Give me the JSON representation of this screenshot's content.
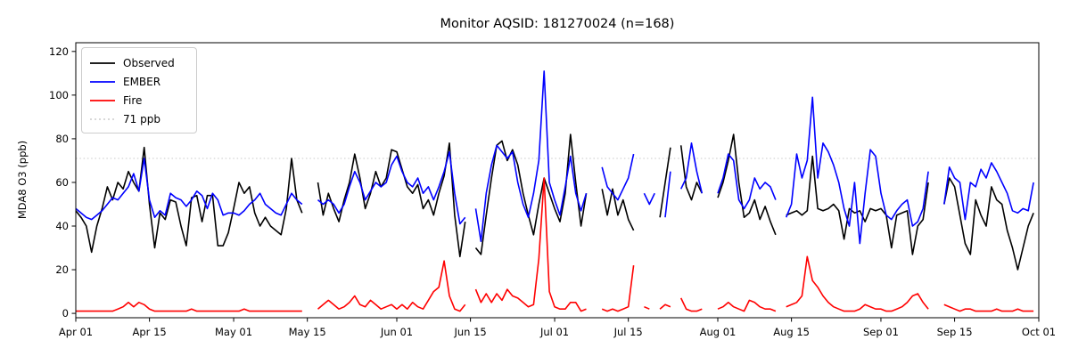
{
  "chart_data": {
    "type": "line",
    "title": "Monitor AQSID: 181270024 (n=168)",
    "xlabel": "",
    "ylabel": "MDA8 O3 (ppb)",
    "n_observations": 168,
    "total_days": 183,
    "x_range": [
      "Apr 01",
      "Oct 01"
    ],
    "ylim": [
      -2,
      124
    ],
    "yticks": [
      0,
      20,
      40,
      60,
      80,
      100,
      120
    ],
    "xticks": [
      {
        "label": "Apr 01",
        "day": 0
      },
      {
        "label": "Apr 15",
        "day": 14
      },
      {
        "label": "May 01",
        "day": 30
      },
      {
        "label": "May 15",
        "day": 44
      },
      {
        "label": "Jun 01",
        "day": 61
      },
      {
        "label": "Jun 15",
        "day": 75
      },
      {
        "label": "Jul 01",
        "day": 91
      },
      {
        "label": "Jul 15",
        "day": 105
      },
      {
        "label": "Aug 01",
        "day": 122
      },
      {
        "label": "Aug 15",
        "day": 136
      },
      {
        "label": "Sep 01",
        "day": 153
      },
      {
        "label": "Sep 15",
        "day": 167
      },
      {
        "label": "Oct 01",
        "day": 183
      }
    ],
    "threshold": {
      "value": 71,
      "label": "71 ppb",
      "color": "#d3d3d3",
      "style": "dotted"
    },
    "legend": [
      {
        "label": "Observed",
        "color": "#000000",
        "style": "solid"
      },
      {
        "label": "EMBER",
        "color": "#0000ff",
        "style": "solid"
      },
      {
        "label": "Fire",
        "color": "#ff0000",
        "style": "solid"
      },
      {
        "label": "71 ppb",
        "color": "#d3d3d3",
        "style": "dotted"
      }
    ],
    "series": [
      {
        "name": "Observed",
        "color": "#000000",
        "values": [
          47,
          44,
          40,
          28,
          40,
          48,
          58,
          52,
          60,
          57,
          65,
          60,
          56,
          76,
          50,
          30,
          46,
          43,
          52,
          51,
          40,
          31,
          53,
          54,
          42,
          54,
          54,
          31,
          31,
          37,
          48,
          60,
          55,
          58,
          46,
          40,
          44,
          40,
          38,
          36,
          48,
          71,
          52,
          46,
          null,
          null,
          60,
          45,
          55,
          48,
          42,
          52,
          60,
          73,
          62,
          48,
          55,
          65,
          58,
          62,
          75,
          74,
          66,
          58,
          55,
          59,
          48,
          52,
          45,
          55,
          63,
          78,
          45,
          26,
          42,
          null,
          30,
          27,
          45,
          62,
          77,
          79,
          70,
          75,
          68,
          55,
          45,
          36,
          50,
          62,
          55,
          48,
          42,
          55,
          82,
          60,
          40,
          55,
          null,
          null,
          57,
          45,
          57,
          45,
          52,
          43,
          38,
          null,
          null,
          null,
          null,
          44,
          60,
          76,
          null,
          77,
          58,
          52,
          60,
          55,
          null,
          null,
          53,
          60,
          70,
          82,
          60,
          44,
          46,
          52,
          43,
          49,
          42,
          36,
          null,
          45,
          46,
          47,
          45,
          47,
          72,
          48,
          47,
          48,
          50,
          47,
          34,
          48,
          46,
          47,
          42,
          48,
          47,
          48,
          45,
          30,
          45,
          46,
          47,
          27,
          40,
          43,
          60,
          null,
          null,
          50,
          62,
          58,
          45,
          32,
          27,
          52,
          45,
          40,
          58,
          52,
          50,
          38,
          30,
          20,
          30,
          40,
          46
        ]
      },
      {
        "name": "EMBER",
        "color": "#0000ff",
        "values": [
          48,
          46,
          44,
          43,
          45,
          47,
          50,
          53,
          52,
          55,
          58,
          64,
          56,
          71,
          52,
          44,
          47,
          45,
          55,
          53,
          52,
          49,
          52,
          56,
          54,
          48,
          55,
          52,
          45,
          46,
          46,
          45,
          47,
          50,
          52,
          55,
          50,
          48,
          46,
          45,
          50,
          55,
          52,
          50,
          null,
          null,
          52,
          50,
          52,
          50,
          46,
          50,
          58,
          65,
          60,
          52,
          56,
          60,
          58,
          60,
          68,
          72,
          65,
          60,
          58,
          62,
          55,
          58,
          52,
          58,
          65,
          74,
          55,
          41,
          44,
          null,
          48,
          33,
          55,
          68,
          77,
          74,
          71,
          74,
          60,
          50,
          44,
          55,
          70,
          111,
          60,
          52,
          45,
          58,
          72,
          55,
          47,
          55,
          null,
          null,
          67,
          58,
          55,
          52,
          57,
          62,
          73,
          null,
          55,
          50,
          55,
          null,
          44,
          65,
          null,
          57,
          62,
          78,
          65,
          55,
          null,
          null,
          55,
          62,
          73,
          70,
          52,
          48,
          52,
          62,
          57,
          60,
          58,
          52,
          null,
          44,
          50,
          73,
          62,
          70,
          99,
          62,
          78,
          74,
          68,
          60,
          48,
          40,
          60,
          32,
          55,
          75,
          72,
          55,
          45,
          43,
          47,
          50,
          52,
          40,
          42,
          48,
          65,
          null,
          null,
          50,
          67,
          62,
          60,
          43,
          60,
          58,
          66,
          62,
          69,
          65,
          60,
          55,
          47,
          46,
          48,
          47,
          60
        ]
      },
      {
        "name": "Fire",
        "color": "#ff0000",
        "values": [
          1,
          1,
          1,
          1,
          1,
          1,
          1,
          1,
          2,
          3,
          5,
          3,
          5,
          4,
          2,
          1,
          1,
          1,
          1,
          1,
          1,
          1,
          2,
          1,
          1,
          1,
          1,
          1,
          1,
          1,
          1,
          1,
          2,
          1,
          1,
          1,
          1,
          1,
          1,
          1,
          1,
          1,
          1,
          1,
          null,
          null,
          2,
          4,
          6,
          4,
          2,
          3,
          5,
          8,
          4,
          3,
          6,
          4,
          2,
          3,
          4,
          2,
          4,
          2,
          5,
          3,
          2,
          6,
          10,
          12,
          24,
          8,
          2,
          1,
          4,
          null,
          11,
          5,
          9,
          5,
          9,
          6,
          11,
          8,
          7,
          5,
          3,
          4,
          25,
          62,
          10,
          3,
          2,
          2,
          5,
          5,
          1,
          2,
          null,
          null,
          2,
          1,
          2,
          1,
          2,
          3,
          22,
          null,
          3,
          2,
          null,
          2,
          4,
          3,
          null,
          7,
          2,
          1,
          1,
          2,
          null,
          null,
          2,
          3,
          5,
          3,
          2,
          1,
          6,
          5,
          3,
          2,
          2,
          1,
          null,
          3,
          4,
          5,
          8,
          26,
          15,
          12,
          8,
          5,
          3,
          2,
          1,
          1,
          1,
          2,
          4,
          3,
          2,
          2,
          1,
          1,
          2,
          3,
          5,
          8,
          9,
          5,
          2,
          null,
          null,
          4,
          3,
          2,
          1,
          2,
          2,
          1,
          1,
          1,
          1,
          2,
          1,
          1,
          1,
          2,
          1,
          1,
          1
        ]
      }
    ]
  }
}
